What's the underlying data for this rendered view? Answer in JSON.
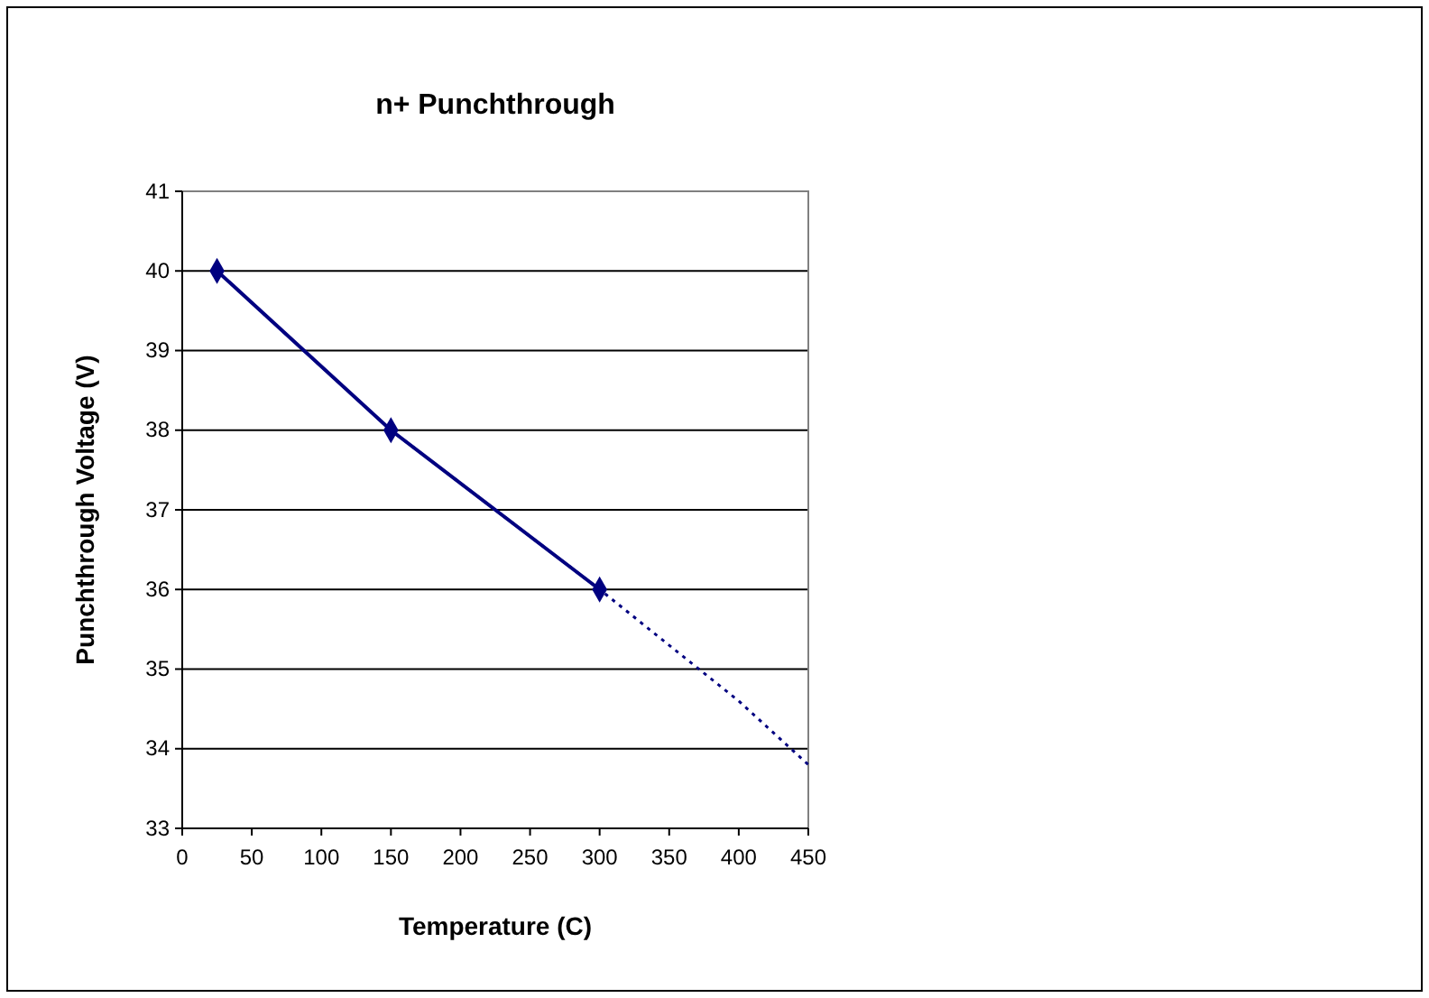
{
  "chart_data": {
    "type": "line",
    "title": "n+ Punchthrough",
    "xlabel": "Temperature (C)",
    "ylabel": "Punchthrough Voltage (V)",
    "xlim": [
      0,
      450
    ],
    "xticks": [
      0,
      50,
      100,
      150,
      200,
      250,
      300,
      350,
      400,
      450
    ],
    "ylim": [
      33,
      41
    ],
    "yticks": [
      33,
      34,
      35,
      36,
      37,
      38,
      39,
      40,
      41
    ],
    "grid": "y",
    "series": [
      {
        "color": "#000080",
        "x": [
          25,
          150,
          300
        ],
        "values": [
          40,
          38,
          36
        ],
        "marker": "diamond",
        "line_style": "solid"
      },
      {
        "color": "#000080",
        "x": [
          25,
          150,
          300,
          400,
          450
        ],
        "values": [
          40,
          38,
          36,
          34.6,
          33.8
        ],
        "marker": "none",
        "line_style": "dotted"
      }
    ]
  }
}
